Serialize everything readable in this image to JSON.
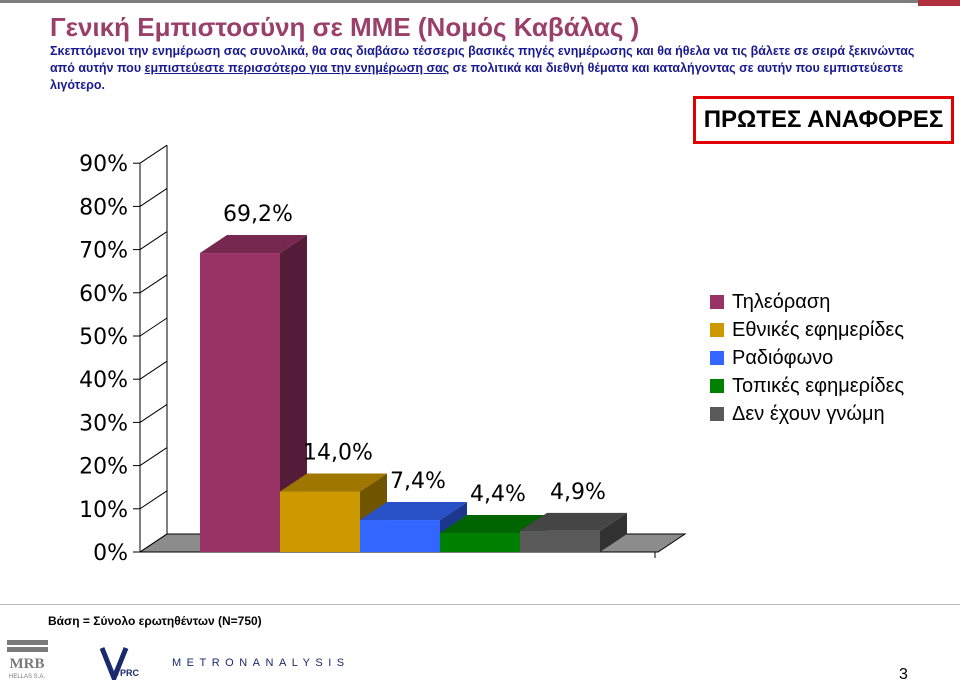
{
  "header": {
    "title": "Γενική Εμπιστοσύνη σε ΜΜΕ (Νομός Καβάλας )",
    "subtitle_before": "Σκεπτόμενοι την ενημέρωση σας συνολικά, θα σας διαβάσω τέσσερις βασικές πηγές ενημέρωσης και θα ήθελα να τις βάλετε σε σειρά ξεκινώντας από αυτήν που ",
    "subtitle_underlined": "εμπιστεύεστε περισσότερο για την ενημέρωση σας",
    "subtitle_after": " σε πολιτικά και διεθνή θέματα και καταλήγοντας σε αυτήν που εμπιστεύεστε λιγότερο.",
    "badge": "ΠΡΩΤΕΣ ΑΝΑΦΟΡΕΣ"
  },
  "chart_data": {
    "type": "bar",
    "categories": [
      "Τηλεόραση",
      "Εθνικές εφημερίδες",
      "Ραδιόφωνο",
      "Τοπικές εφημερίδες",
      "Δεν έχουν γνώμη"
    ],
    "values": [
      69.2,
      14.0,
      7.4,
      4.4,
      4.9
    ],
    "data_labels": [
      "69,2%",
      "14,0%",
      "7,4%",
      "4,4%",
      "4,9%"
    ],
    "colors": [
      "#993366",
      "#cc9900",
      "#3366ff",
      "#008000",
      "#595959"
    ],
    "y_ticks": [
      "0%",
      "10%",
      "20%",
      "30%",
      "40%",
      "50%",
      "60%",
      "70%",
      "80%",
      "90%"
    ],
    "ylim": [
      0,
      90
    ],
    "legend_position": "right",
    "style": "3d"
  },
  "footer": {
    "base_note": "Βάση = Σύνολο ερωτηθέντων (N=750)",
    "logo_mrb": "MRB",
    "logo_mrb_sub": "HELLAS S.A.",
    "logo_vprc": "VPRC",
    "metron": "METRONANALYSIS",
    "page_number": "3"
  }
}
